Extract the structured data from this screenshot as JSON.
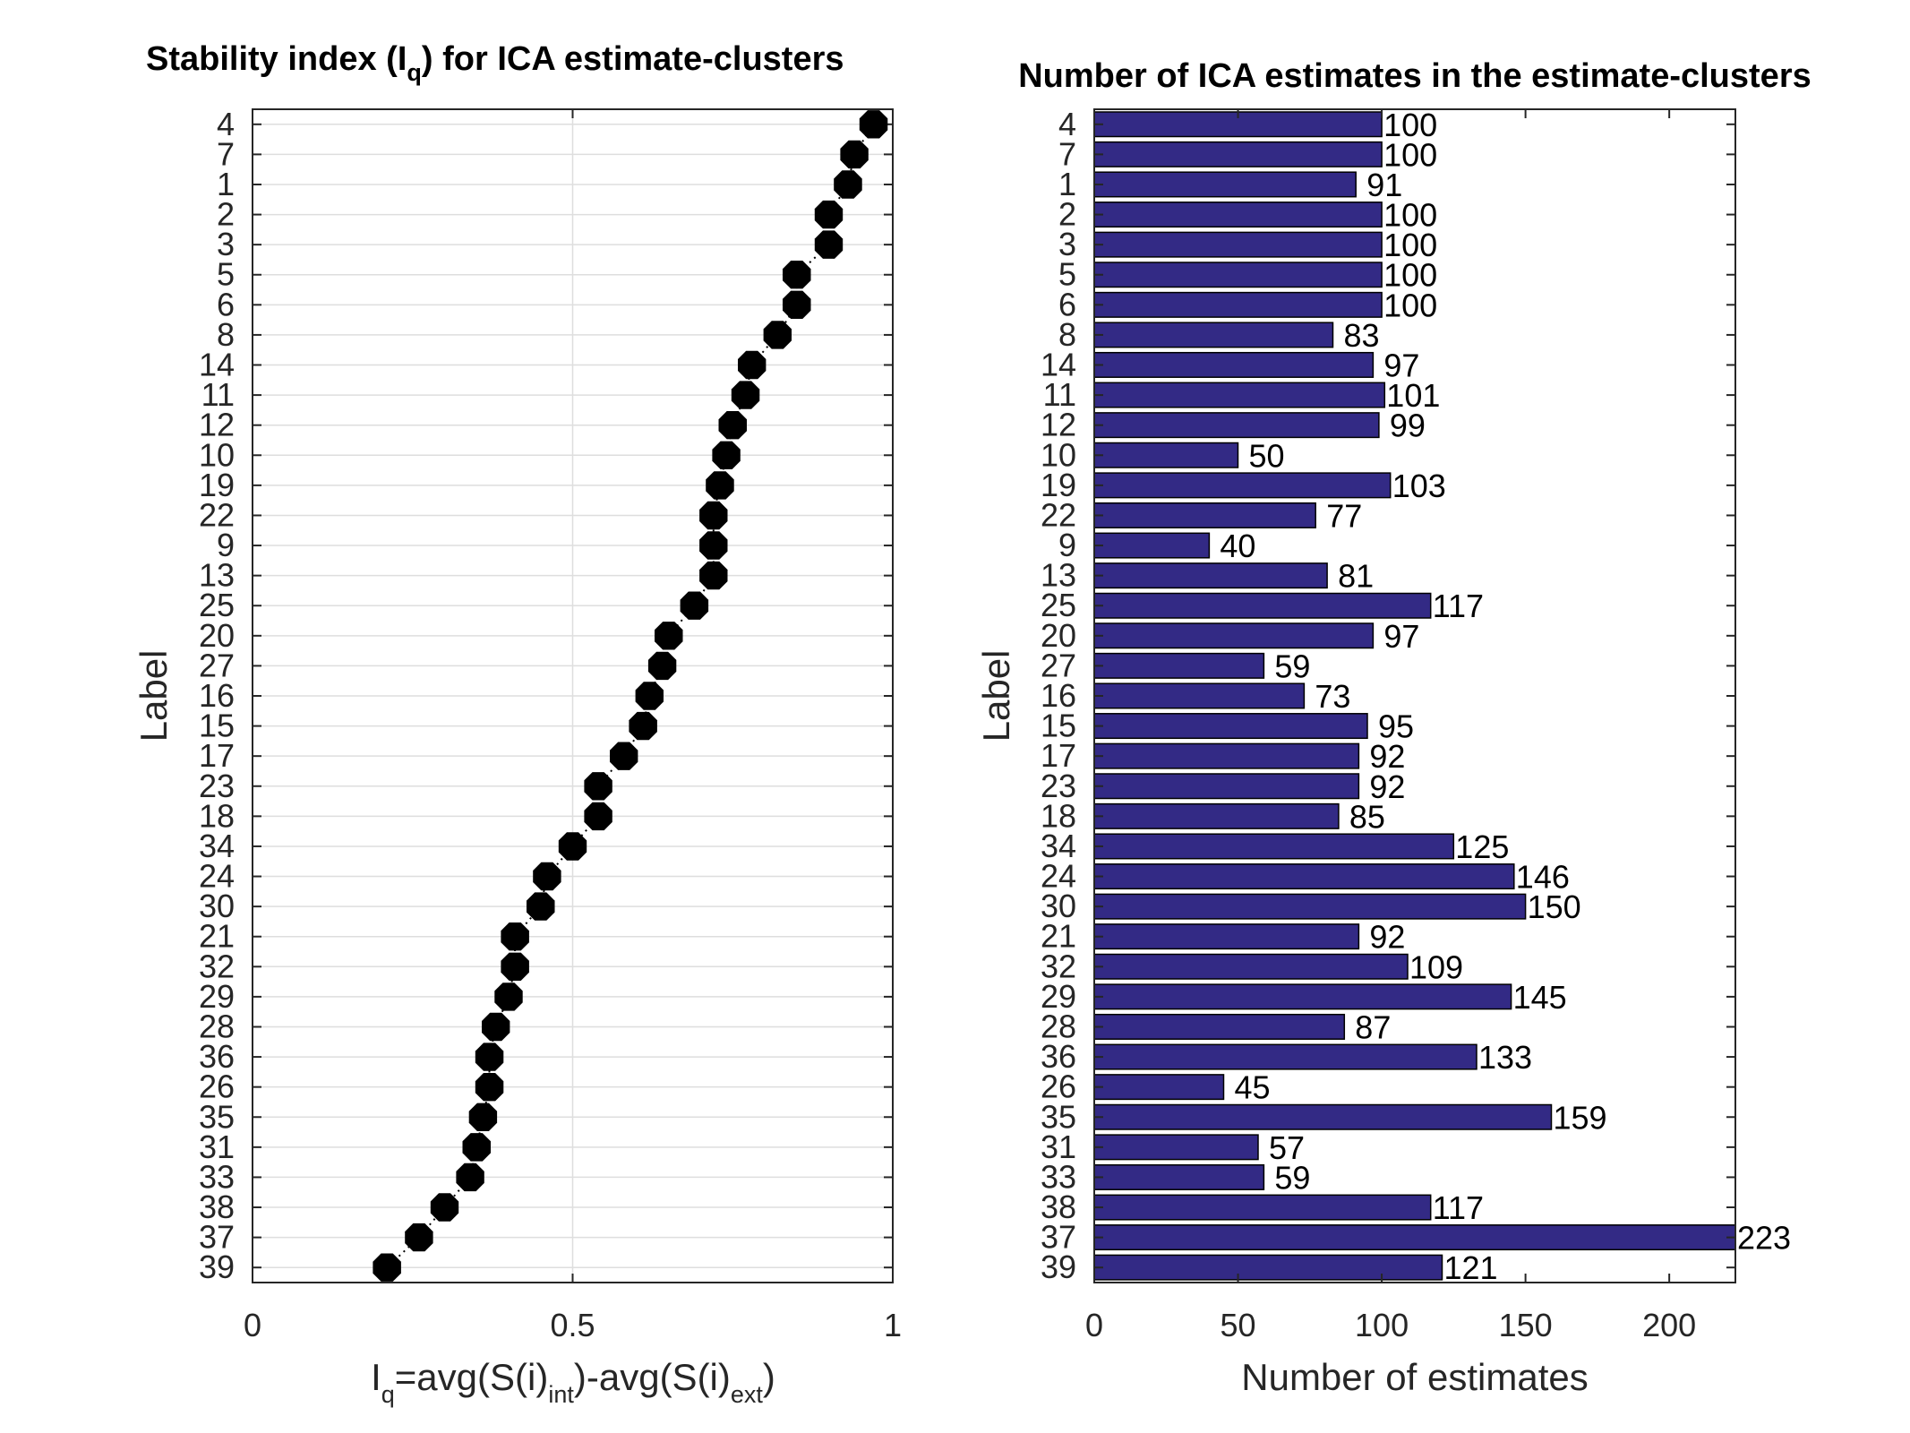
{
  "chart_data": [
    {
      "type": "scatter",
      "title": "Stability index (I",
      "title_sub": "q",
      "title_rest": ") for ICA estimate-clusters",
      "xlabel": {
        "base": "I",
        "s1": "q",
        "t1": "=avg(S(i)",
        "s2": "int",
        "t2": ")-avg(S(i)",
        "s3": "ext",
        "t3": ")"
      },
      "ylabel": "Label",
      "xlim": [
        0,
        1
      ],
      "xticks": [
        "0",
        "0.5",
        "1"
      ],
      "grid": "on",
      "marker_color": "#000000",
      "categories": [
        "4",
        "7",
        "1",
        "2",
        "3",
        "5",
        "6",
        "8",
        "14",
        "11",
        "12",
        "10",
        "19",
        "22",
        "9",
        "13",
        "25",
        "20",
        "27",
        "16",
        "15",
        "17",
        "23",
        "18",
        "34",
        "24",
        "30",
        "21",
        "32",
        "29",
        "28",
        "36",
        "26",
        "35",
        "31",
        "33",
        "38",
        "37",
        "39"
      ],
      "values": [
        0.97,
        0.94,
        0.93,
        0.9,
        0.9,
        0.85,
        0.85,
        0.82,
        0.78,
        0.77,
        0.75,
        0.74,
        0.73,
        0.72,
        0.72,
        0.72,
        0.69,
        0.65,
        0.64,
        0.62,
        0.61,
        0.58,
        0.54,
        0.54,
        0.5,
        0.46,
        0.45,
        0.41,
        0.41,
        0.4,
        0.38,
        0.37,
        0.37,
        0.36,
        0.35,
        0.34,
        0.3,
        0.26,
        0.21
      ]
    },
    {
      "type": "bar",
      "orientation": "horizontal",
      "title": "Number of ICA estimates in the estimate-clusters",
      "xlabel": "Number of estimates",
      "ylabel": "Label",
      "xlim": [
        0,
        223
      ],
      "xticks": [
        "0",
        "50",
        "100",
        "150",
        "200"
      ],
      "bar_color": "#332a85",
      "categories": [
        "4",
        "7",
        "1",
        "2",
        "3",
        "5",
        "6",
        "8",
        "14",
        "11",
        "12",
        "10",
        "19",
        "22",
        "9",
        "13",
        "25",
        "20",
        "27",
        "16",
        "15",
        "17",
        "23",
        "18",
        "34",
        "24",
        "30",
        "21",
        "32",
        "29",
        "28",
        "36",
        "26",
        "35",
        "31",
        "33",
        "38",
        "37",
        "39"
      ],
      "values": [
        100,
        100,
        91,
        100,
        100,
        100,
        100,
        83,
        97,
        101,
        99,
        50,
        103,
        77,
        40,
        81,
        117,
        97,
        59,
        73,
        95,
        92,
        92,
        85,
        125,
        146,
        150,
        92,
        109,
        145,
        87,
        133,
        45,
        159,
        57,
        59,
        117,
        223,
        121
      ],
      "data_labels": [
        "100",
        "100",
        "91",
        "100",
        "100",
        "100",
        "100",
        "83",
        "97",
        "101",
        "99",
        "50",
        "103",
        "77",
        "40",
        "81",
        "117",
        "97",
        "59",
        "73",
        "95",
        "92",
        "92",
        "85",
        "125",
        "146",
        "150",
        "92",
        "109",
        "145",
        "87",
        "133",
        "45",
        "159",
        "57",
        "59",
        "117",
        "223",
        "121"
      ]
    }
  ]
}
